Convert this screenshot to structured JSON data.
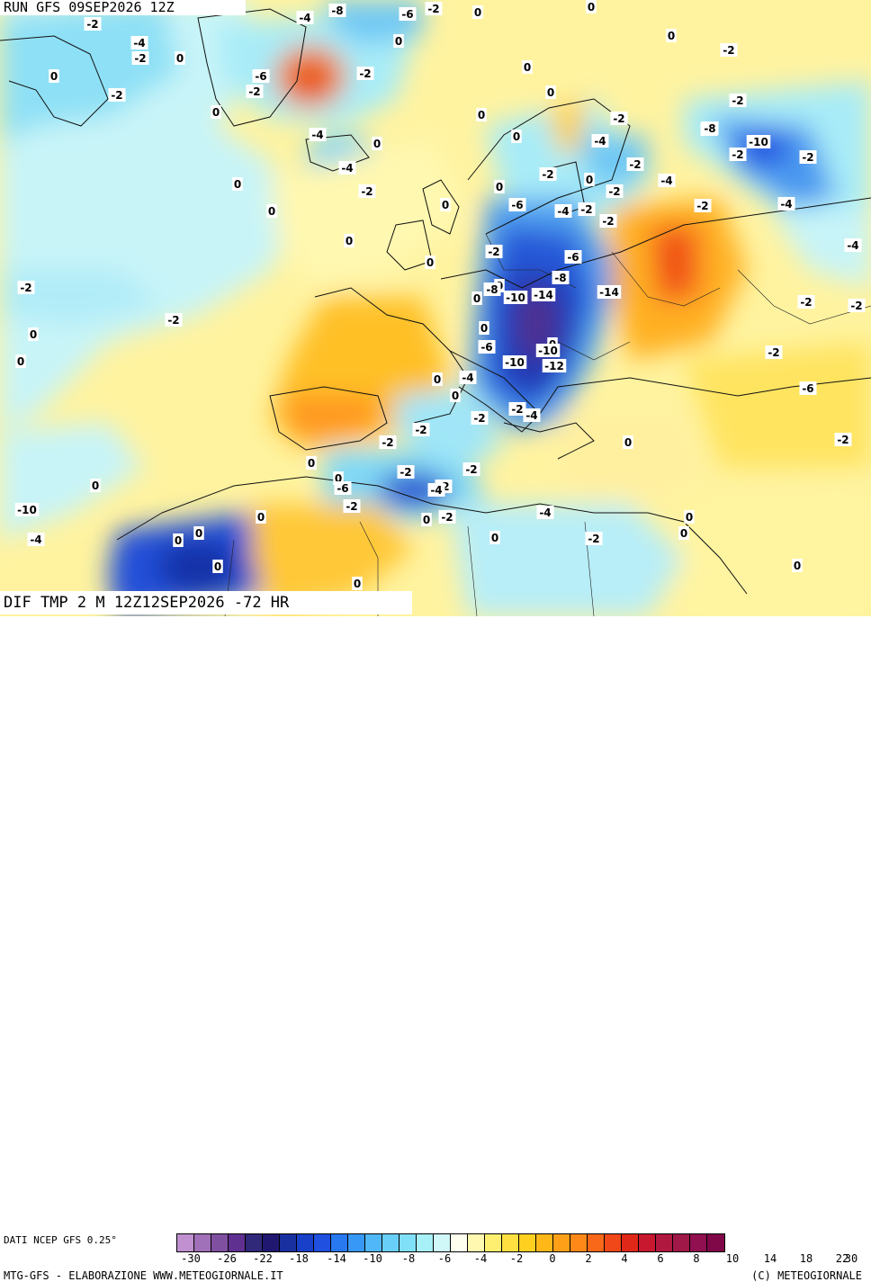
{
  "header": {
    "run_label": "RUN GFS 09SEP2026 12Z",
    "field_label": "DIF TMP 2 M 12Z12SEP2026 -72 HR"
  },
  "legend": {
    "data_source": "DATI NCEP GFS 0.25°",
    "ticks": [
      "-30",
      "-26",
      "-22",
      "-18",
      "-14",
      "-10",
      "-8",
      "-6",
      "-4",
      "-2",
      "0",
      "2",
      "4",
      "6",
      "8",
      "10",
      "14",
      "18",
      "22",
      "30"
    ],
    "colors": [
      "#c090d0",
      "#a070b8",
      "#8050a0",
      "#603090",
      "#302878",
      "#201870",
      "#1830a0",
      "#1840c8",
      "#2050e0",
      "#2878f0",
      "#3898f8",
      "#50b8f8",
      "#68d0f8",
      "#80e0f8",
      "#a8f0f8",
      "#d0f8f8",
      "#fffff0",
      "#fff8b0",
      "#ffef70",
      "#ffe040",
      "#ffd020",
      "#ffb818",
      "#ffa018",
      "#ff8818",
      "#f86818",
      "#f04818",
      "#e02818",
      "#c81830",
      "#b01840",
      "#a01848",
      "#901050",
      "#800848"
    ]
  },
  "footer": {
    "left": "MTG-GFS - ELABORAZIONE WWW.METEOGIORNALE.IT",
    "right": "(C) METEOGIORNALE"
  },
  "map_labels": [
    "-2",
    "-4",
    "-8",
    "-6",
    "-2",
    "0",
    "0",
    "-2",
    "-4",
    "-2",
    "0",
    "0",
    "0",
    "0",
    "-2",
    "-6",
    "-2",
    "-2",
    "0",
    "0",
    "-2",
    "0",
    "-2",
    "-4",
    "0",
    "-2",
    "-4",
    "-2",
    "-2",
    "-8",
    "-10",
    "-4",
    "-2",
    "-2",
    "0",
    "-2",
    "-4",
    "-2",
    "-4",
    "-2",
    "-6",
    "0",
    "0",
    "0",
    "0",
    "0",
    "-2",
    "0",
    "-4",
    "-2",
    "-4",
    "-2",
    "-2",
    "0",
    "-6",
    "0",
    "-2",
    "0",
    "-8",
    "-10",
    "-8",
    "-14",
    "-14",
    "-2",
    "0",
    "-2",
    "0",
    "0",
    "-2",
    "0",
    "-6",
    "0",
    "-10",
    "-10",
    "-12",
    "-4",
    "0",
    "0",
    "-2",
    "-4",
    "-2",
    "-2",
    "-6",
    "-2",
    "0",
    "0",
    "-2",
    "0",
    "-2",
    "-6",
    "-2",
    "-4",
    "-2",
    "-2",
    "-2",
    "0",
    "-4",
    "0",
    "0",
    "0",
    "0",
    "0",
    "0",
    "-2",
    "-4",
    "0",
    "0",
    "0",
    "-10",
    "0"
  ]
}
